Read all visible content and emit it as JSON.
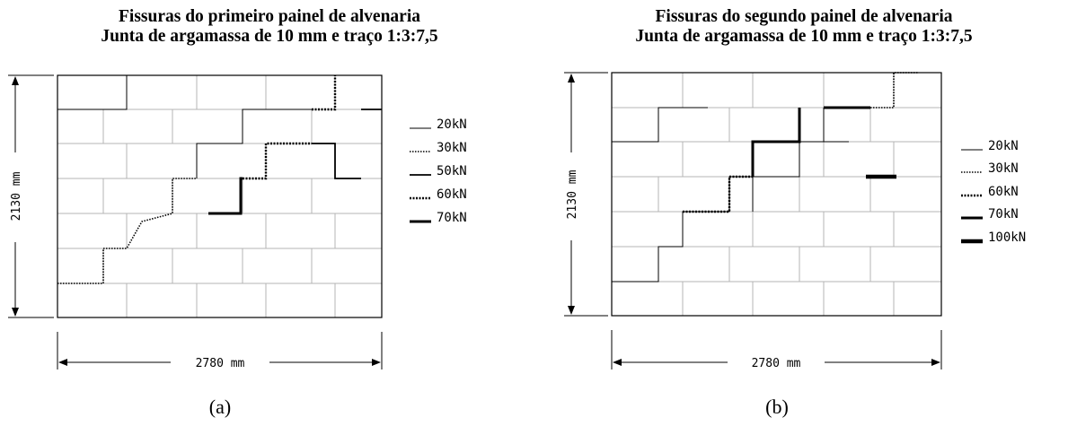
{
  "panels": [
    {
      "id": "a",
      "title_line1": "Fissuras do primeiro painel de alvenaria",
      "title_line2": "Junta de argamassa de 10 mm e traço 1:3:7,5",
      "dim_vertical": "2130 mm",
      "dim_horizontal": "2780 mm",
      "caption": "(a)",
      "legend": [
        "20kN",
        "30kN",
        "50kN",
        "60kN",
        "70kN"
      ]
    },
    {
      "id": "b",
      "title_line1": "Fissuras do segundo painel de alvenaria",
      "title_line2": "Junta de argamassa de 10 mm e traço 1:3:7,5",
      "dim_vertical": "2130 mm",
      "dim_horizontal": "2780 mm",
      "caption": "(b)",
      "legend": [
        "20kN",
        "30kN",
        "60kN",
        "70kN",
        "100kN"
      ]
    }
  ],
  "colors": {
    "ink": "#000000",
    "masonry_grid": "#b4b4b4"
  }
}
